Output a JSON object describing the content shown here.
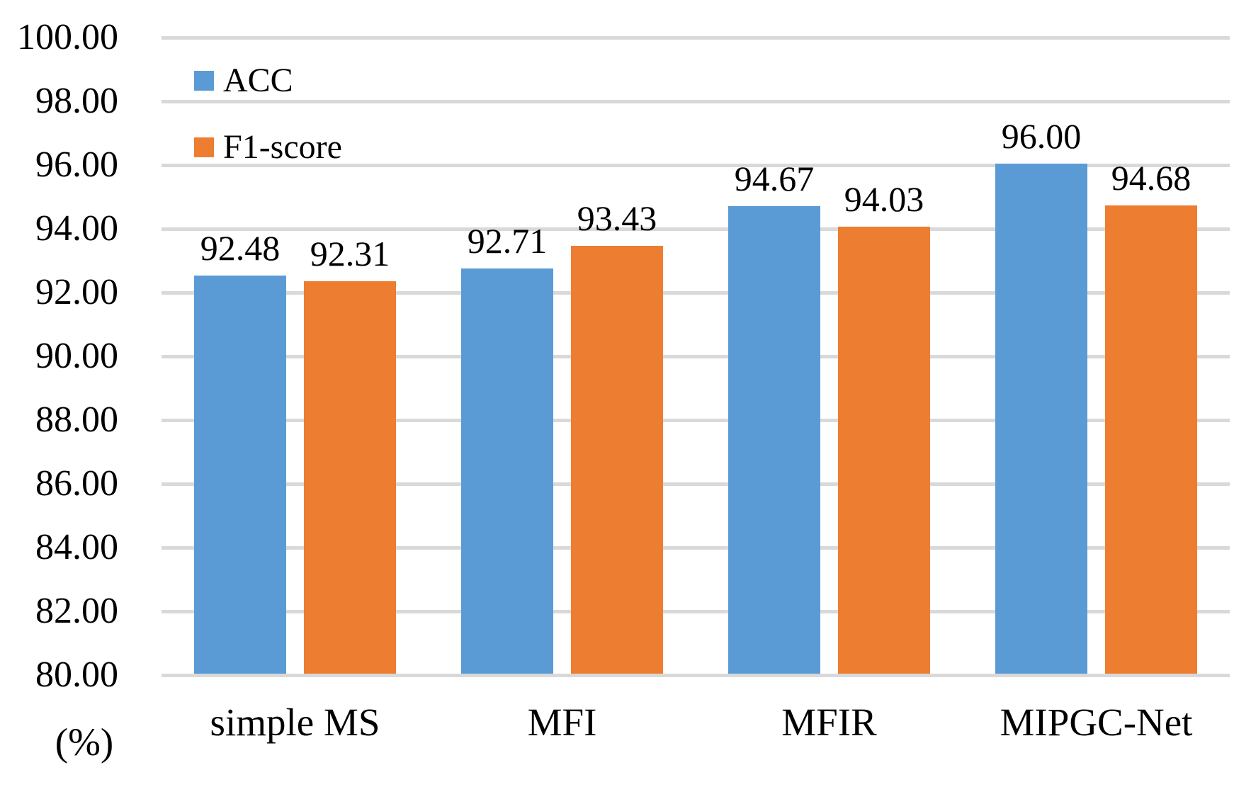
{
  "chart_data": {
    "type": "bar",
    "title": "",
    "categories": [
      "simple MS",
      "MFI",
      "MFIR",
      "MIPGC-Net"
    ],
    "series": [
      {
        "name": "ACC",
        "color": "#5B9BD5",
        "values": [
          92.48,
          92.71,
          94.67,
          96.0
        ]
      },
      {
        "name": "F1-score",
        "color": "#ED7D31",
        "values": [
          92.31,
          93.43,
          94.03,
          94.68
        ]
      }
    ],
    "value_labels": [
      "92.48",
      "92.31",
      "92.71",
      "93.43",
      "94.67",
      "94.03",
      "96.00",
      "94.68"
    ],
    "xlabel": "",
    "ylabel": "(%)",
    "ylim": [
      80,
      100
    ],
    "ytick_step": 2,
    "ytick_labels": [
      "100.00",
      "98.00",
      "96.00",
      "94.00",
      "92.00",
      "90.00",
      "88.00",
      "86.00",
      "84.00",
      "82.00",
      "80.00"
    ],
    "grid": true,
    "gridline_color": "#D9D9D9",
    "background_color": "#FFFFFF",
    "text_color": "#000000",
    "legend_position": "inside-top-left",
    "legend_entries": [
      "ACC",
      "F1-score"
    ]
  }
}
